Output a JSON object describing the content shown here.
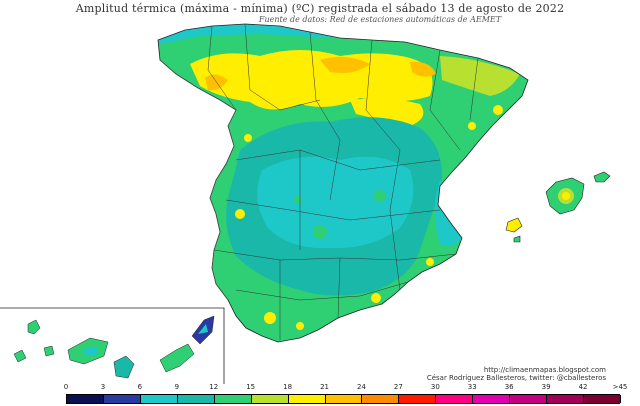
{
  "title": "Amplitud térmica (máxima - mínima) (ºC) registrada el sábado 13 de agosto de 2022",
  "subtitle": "Fuente de datos: Red de estaciones automáticas de AEMET",
  "credits": {
    "url": "http://climaenmapas.blogspot.com",
    "author": "César Rodríguez Ballesteros, twitter: @cballesteros"
  },
  "legend": {
    "ticks": [
      "0",
      "3",
      "6",
      "9",
      "12",
      "15",
      "18",
      "21",
      "24",
      "27",
      "30",
      "33",
      "36",
      "39",
      "42",
      ">45"
    ],
    "colors": [
      "#0b1050",
      "#2a3aa0",
      "#1ec8c8",
      "#19b8a8",
      "#2fcf73",
      "#b8e030",
      "#ffee00",
      "#ffc000",
      "#ff8a00",
      "#ff1a00",
      "#ff0080",
      "#e000b0",
      "#c00080",
      "#a0005a",
      "#7a0030"
    ]
  }
}
